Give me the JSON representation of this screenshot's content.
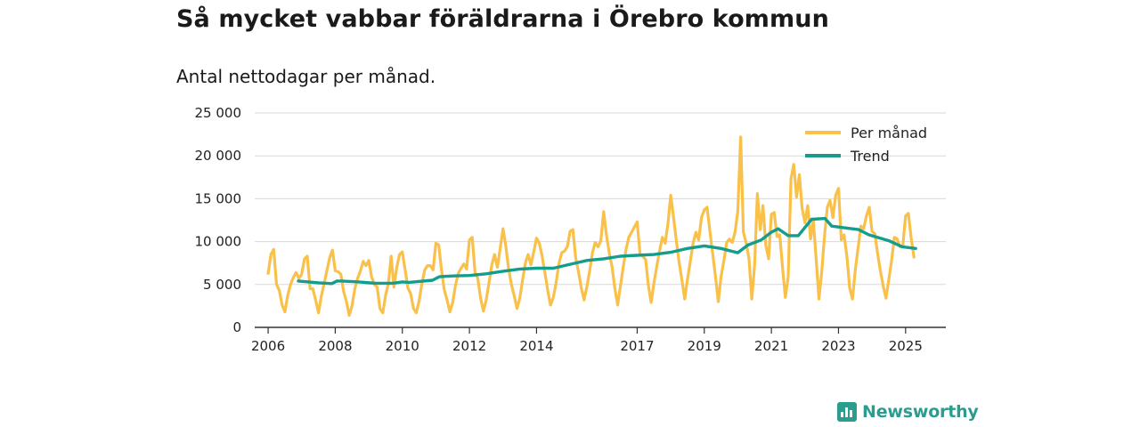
{
  "chart_data": {
    "type": "line",
    "title": "Så mycket vabbar föräldrarna i Örebro kommun",
    "subtitle": "Antal nettodagar per månad.",
    "xlabel": "",
    "ylabel": "",
    "ylim": [
      0,
      25000
    ],
    "xlim": [
      2005.6,
      2026.2
    ],
    "y_ticks": [
      0,
      5000,
      10000,
      15000,
      20000,
      25000
    ],
    "y_tick_labels": [
      "0",
      "5 000",
      "10 000",
      "15 000",
      "20 000",
      "25 000"
    ],
    "x_ticks": [
      2006,
      2008,
      2010,
      2012,
      2014,
      2017,
      2019,
      2021,
      2023,
      2025
    ],
    "x_tick_labels": [
      "2006",
      "2008",
      "2010",
      "2012",
      "2014",
      "2017",
      "2019",
      "2021",
      "2023",
      "2025"
    ],
    "grid": true,
    "legend_position": "top-right",
    "monthly_pattern": [
      6300,
      8500,
      9100,
      5000,
      4300,
      2600,
      1800,
      3700,
      5000,
      5800,
      6400,
      5700
    ],
    "series": [
      {
        "name": "Per månad",
        "color": "#f9c14a",
        "start": 2006.0,
        "step": 0.0833333,
        "values": [
          6300,
          8500,
          9100,
          5000,
          4300,
          2600,
          1800,
          3700,
          5000,
          5800,
          6400,
          5700,
          6200,
          8000,
          8300,
          4500,
          4500,
          3200,
          1700,
          3600,
          5100,
          6600,
          8100,
          9000,
          6600,
          6500,
          6200,
          4200,
          3000,
          1400,
          2500,
          4500,
          5700,
          6600,
          7700,
          7200,
          7800,
          5900,
          5000,
          4700,
          2200,
          1700,
          3700,
          5100,
          8300,
          4700,
          7000,
          8500,
          8800,
          6700,
          4600,
          3900,
          2200,
          1700,
          3100,
          5100,
          6700,
          7200,
          7200,
          6700,
          9800,
          9600,
          6700,
          4400,
          3200,
          1800,
          2900,
          4900,
          6300,
          6900,
          7400,
          6800,
          10200,
          10500,
          6400,
          5700,
          3400,
          1900,
          3200,
          5200,
          7300,
          8500,
          7000,
          9200,
          11500,
          9500,
          6900,
          5000,
          3700,
          2200,
          3400,
          5500,
          7500,
          8500,
          7300,
          8800,
          10400,
          9800,
          8300,
          6400,
          4300,
          2600,
          3500,
          5200,
          7400,
          8700,
          8900,
          9400,
          11200,
          11400,
          8100,
          6500,
          4600,
          3200,
          4700,
          6600,
          8700,
          9900,
          9400,
          10100,
          13500,
          10800,
          8700,
          7100,
          4600,
          2600,
          4800,
          7000,
          9100,
          10500,
          11100,
          11700,
          12300,
          8600,
          8300,
          7900,
          4900,
          2900,
          5200,
          7100,
          8900,
          10500,
          9800,
          12100,
          15400,
          12900,
          10100,
          7600,
          5500,
          3300,
          5600,
          7700,
          9800,
          11100,
          10200,
          12800,
          13700,
          14000,
          11200,
          8600,
          6000,
          3000,
          5900,
          7800,
          9900,
          10300,
          9900,
          11100,
          13500,
          22200,
          11100,
          9800,
          8000,
          3300,
          7300,
          15600,
          11400,
          14200,
          9600,
          8000,
          13200,
          13400,
          10600,
          10800,
          6900,
          3500,
          5900,
          17300,
          19000,
          15200,
          17800,
          13900,
          12200,
          14200,
          10300,
          12500,
          8100,
          3300,
          6400,
          10700,
          14000,
          14800,
          12800,
          15400,
          16200,
          10200,
          10800,
          8300,
          4600,
          3300,
          6700,
          9200,
          11800,
          11500,
          13000,
          14000,
          11200,
          10900,
          8600,
          6600,
          4800,
          3400,
          5600,
          7800,
          10500,
          10300,
          9400,
          9500,
          13000,
          13300,
          10400,
          8200
        ]
      },
      {
        "name": "Trend",
        "color": "#149c8c",
        "x": [
          2006.9,
          2007.5,
          2007.9,
          2008.05,
          2008.2,
          2008.7,
          2009.2,
          2009.7,
          2010.0,
          2010.2,
          2010.9,
          2011.1,
          2011.5,
          2012.0,
          2012.5,
          2013.0,
          2013.5,
          2014.0,
          2014.5,
          2015.0,
          2015.5,
          2016.0,
          2016.5,
          2017.0,
          2017.5,
          2018.0,
          2018.5,
          2019.0,
          2019.5,
          2020.0,
          2020.3,
          2020.7,
          2021.0,
          2021.2,
          2021.5,
          2021.8,
          2022.2,
          2022.6,
          2022.8,
          2023.2,
          2023.6,
          2023.9,
          2024.5,
          2024.9,
          2025.3
        ],
        "values": [
          5400,
          5200,
          5100,
          5400,
          5400,
          5300,
          5150,
          5150,
          5300,
          5250,
          5500,
          5900,
          6000,
          6050,
          6250,
          6550,
          6800,
          6900,
          6900,
          7350,
          7800,
          8000,
          8300,
          8400,
          8500,
          8750,
          9200,
          9500,
          9200,
          8700,
          9600,
          10200,
          11100,
          11500,
          10700,
          10700,
          12600,
          12700,
          11800,
          11600,
          11400,
          10800,
          10100,
          9400,
          9200
        ]
      }
    ]
  },
  "brand": {
    "name": "Newsworthy",
    "color": "#2a9d8f"
  }
}
